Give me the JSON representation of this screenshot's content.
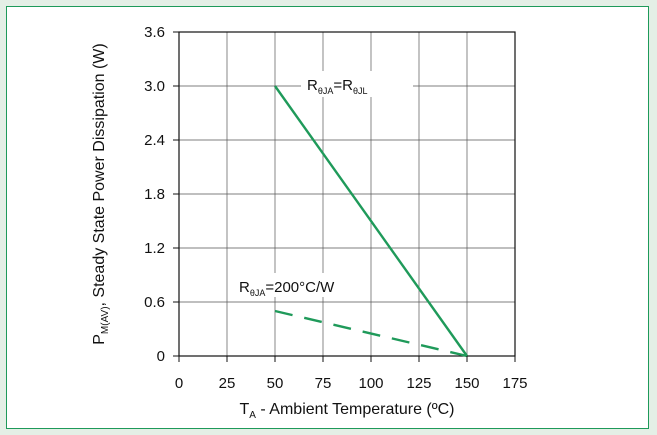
{
  "chart_data": {
    "type": "line",
    "xlabel": {
      "main": "T",
      "sub": "A",
      "rest": " - Ambient Temperature (ºC)"
    },
    "ylabel": {
      "pre": "P",
      "sub": "M(AV)",
      "rest": ", Steady State Power Dissipation (W)"
    },
    "x_ticks": [
      "0",
      "25",
      "50",
      "75",
      "100",
      "125",
      "150",
      "175"
    ],
    "y_ticks": [
      "0",
      "0.6",
      "1.2",
      "1.8",
      "2.4",
      "3.0",
      "3.6"
    ],
    "xlim": [
      0,
      175
    ],
    "ylim": [
      0,
      3.6
    ],
    "grid": true,
    "series": [
      {
        "x": [
          50,
          150
        ],
        "y": [
          3.0,
          0
        ],
        "style": "solid",
        "color": "#1f9a5a",
        "annotation": {
          "r": "R",
          "sub1": "θJA",
          "eq": "=R",
          "sub2": "θJL",
          "rest": ""
        }
      },
      {
        "x": [
          50,
          150
        ],
        "y": [
          0.5,
          0
        ],
        "style": "dashed",
        "color": "#1f9a5a",
        "annotation": {
          "r": "R",
          "sub1": "θJA",
          "eq": "=200°C/W",
          "sub2": "",
          "rest": ""
        }
      }
    ]
  },
  "colors": {
    "frame": "#1e9a5a",
    "background": "#e4efe6",
    "series": "#1f9a5a"
  }
}
